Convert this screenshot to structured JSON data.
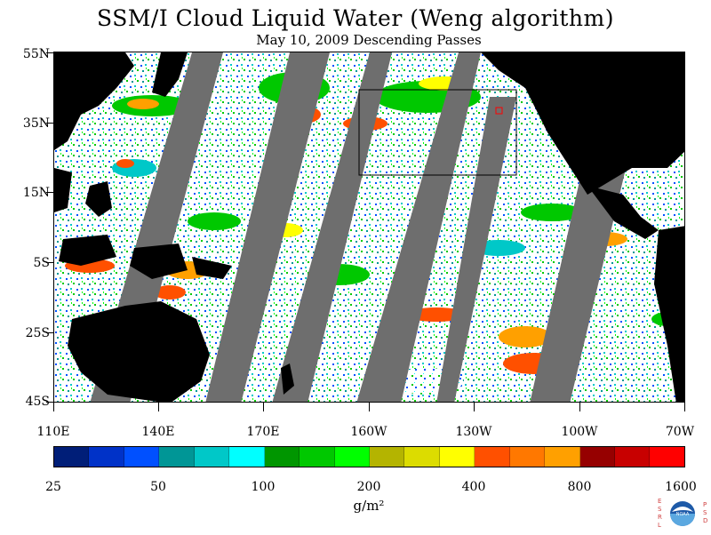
{
  "title": "SSM/I Cloud Liquid Water (Weng algorithm)",
  "subtitle": "May 10, 2009  Descending Passes",
  "lat_labels": [
    "55N",
    "35N",
    "15N",
    "5S",
    "25S",
    "45S"
  ],
  "lon_labels": [
    "110E",
    "140E",
    "170E",
    "160W",
    "130W",
    "100W",
    "70W"
  ],
  "colorbar": {
    "colors": [
      "#001E78",
      "#0032C8",
      "#0050FF",
      "#009696",
      "#00C8C8",
      "#00FFFF",
      "#009600",
      "#00C800",
      "#00FF00",
      "#B4B400",
      "#DCDC00",
      "#FFFF00",
      "#FF5000",
      "#FF7800",
      "#FFA000",
      "#960000",
      "#C80000",
      "#FF0000"
    ],
    "labels": [
      "25",
      "50",
      "100",
      "200",
      "400",
      "800",
      "1600"
    ]
  },
  "units": "g/m²",
  "logo": {
    "left_letters": "ESRL",
    "right_letters": "PSD",
    "center_text": "NOAA"
  },
  "map_colors": {
    "land": "#000000",
    "no_data": "#6E6E6E",
    "clear": "#FFFFFF"
  }
}
